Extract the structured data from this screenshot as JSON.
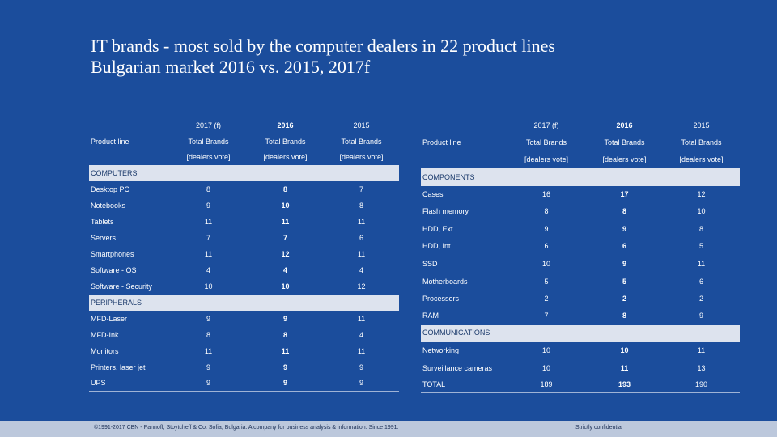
{
  "title": {
    "line1": "IT brands - most sold by the computer dealers in 22 product lines",
    "line2": "Bulgarian market 2016 vs. 2015, 2017f"
  },
  "left": {
    "year_headers": [
      "2017 (f)",
      "2016",
      "2015"
    ],
    "product_line_label": "Product line",
    "total_brands": [
      "Total Brands",
      "Total Brands",
      "Total Brands"
    ],
    "dealers_vote": [
      "[dealers vote]",
      "[dealers vote]",
      "[dealers vote]"
    ],
    "sections": [
      {
        "name": "COMPUTERS",
        "rows": [
          {
            "label": "Desktop PC",
            "v2017": "8",
            "v2016": "8",
            "v2015": "7"
          },
          {
            "label": "Notebooks",
            "v2017": "9",
            "v2016": "10",
            "v2015": "8"
          },
          {
            "label": "Tablets",
            "v2017": "11",
            "v2016": "11",
            "v2015": "11"
          },
          {
            "label": "Servers",
            "v2017": "7",
            "v2016": "7",
            "v2015": "6"
          },
          {
            "label": "Smartphones",
            "v2017": "11",
            "v2016": "12",
            "v2015": "11"
          },
          {
            "label": "Software - OS",
            "v2017": "4",
            "v2016": "4",
            "v2015": "4"
          },
          {
            "label": "Software - Security",
            "v2017": "10",
            "v2016": "10",
            "v2015": "12"
          }
        ]
      },
      {
        "name": "PERIPHERALS",
        "rows": [
          {
            "label": "MFD-Laser",
            "v2017": "9",
            "v2016": "9",
            "v2015": "11"
          },
          {
            "label": "MFD-Ink",
            "v2017": "8",
            "v2016": "8",
            "v2015": "4"
          },
          {
            "label": "Monitors",
            "v2017": "11",
            "v2016": "11",
            "v2015": "11"
          },
          {
            "label": "Printers, laser jet",
            "v2017": "9",
            "v2016": "9",
            "v2015": "9"
          },
          {
            "label": "UPS",
            "v2017": "9",
            "v2016": "9",
            "v2015": "9"
          }
        ]
      }
    ]
  },
  "right": {
    "year_headers": [
      "2017 (f)",
      "2016",
      "2015"
    ],
    "product_line_label": "Product line",
    "total_brands": [
      "Total Brands",
      "Total Brands",
      "Total Brands"
    ],
    "dealers_vote": [
      "[dealers vote]",
      "[dealers vote]",
      "[dealers vote]"
    ],
    "sections": [
      {
        "name": "COMPONENTS",
        "rows": [
          {
            "label": "Cases",
            "v2017": "16",
            "v2016": "17",
            "v2015": "12"
          },
          {
            "label": "Flash memory",
            "v2017": "8",
            "v2016": "8",
            "v2015": "10"
          },
          {
            "label": "HDD, Ext.",
            "v2017": "9",
            "v2016": "9",
            "v2015": "8"
          },
          {
            "label": "HDD, Int.",
            "v2017": "6",
            "v2016": "6",
            "v2015": "5"
          },
          {
            "label": "SSD",
            "v2017": "10",
            "v2016": "9",
            "v2015": "11"
          },
          {
            "label": "Motherboards",
            "v2017": "5",
            "v2016": "5",
            "v2015": "6"
          },
          {
            "label": "Processors",
            "v2017": "2",
            "v2016": "2",
            "v2015": "2"
          },
          {
            "label": "RAM",
            "v2017": "7",
            "v2016": "8",
            "v2015": "9"
          }
        ]
      },
      {
        "name": "COMMUNICATIONS",
        "rows": [
          {
            "label": "Networking",
            "v2017": "10",
            "v2016": "10",
            "v2015": "11"
          },
          {
            "label": "Surveillance cameras",
            "v2017": "10",
            "v2016": "11",
            "v2015": "13"
          }
        ]
      }
    ],
    "total": {
      "label": "TOTAL",
      "v2017": "189",
      "v2016": "193",
      "v2015": "190"
    }
  },
  "footer": {
    "copyright": "©1991-2017 CBN - Pannoff, Stoytcheff & Co. Sofia, Bulgaria. A company for business analysis & information. Since 1991.",
    "confidential": "Strictly confidential"
  },
  "colors": {
    "background": "#1b4d9c",
    "section_band": "#dde3ee",
    "footer_band": "#bcc8dc"
  }
}
